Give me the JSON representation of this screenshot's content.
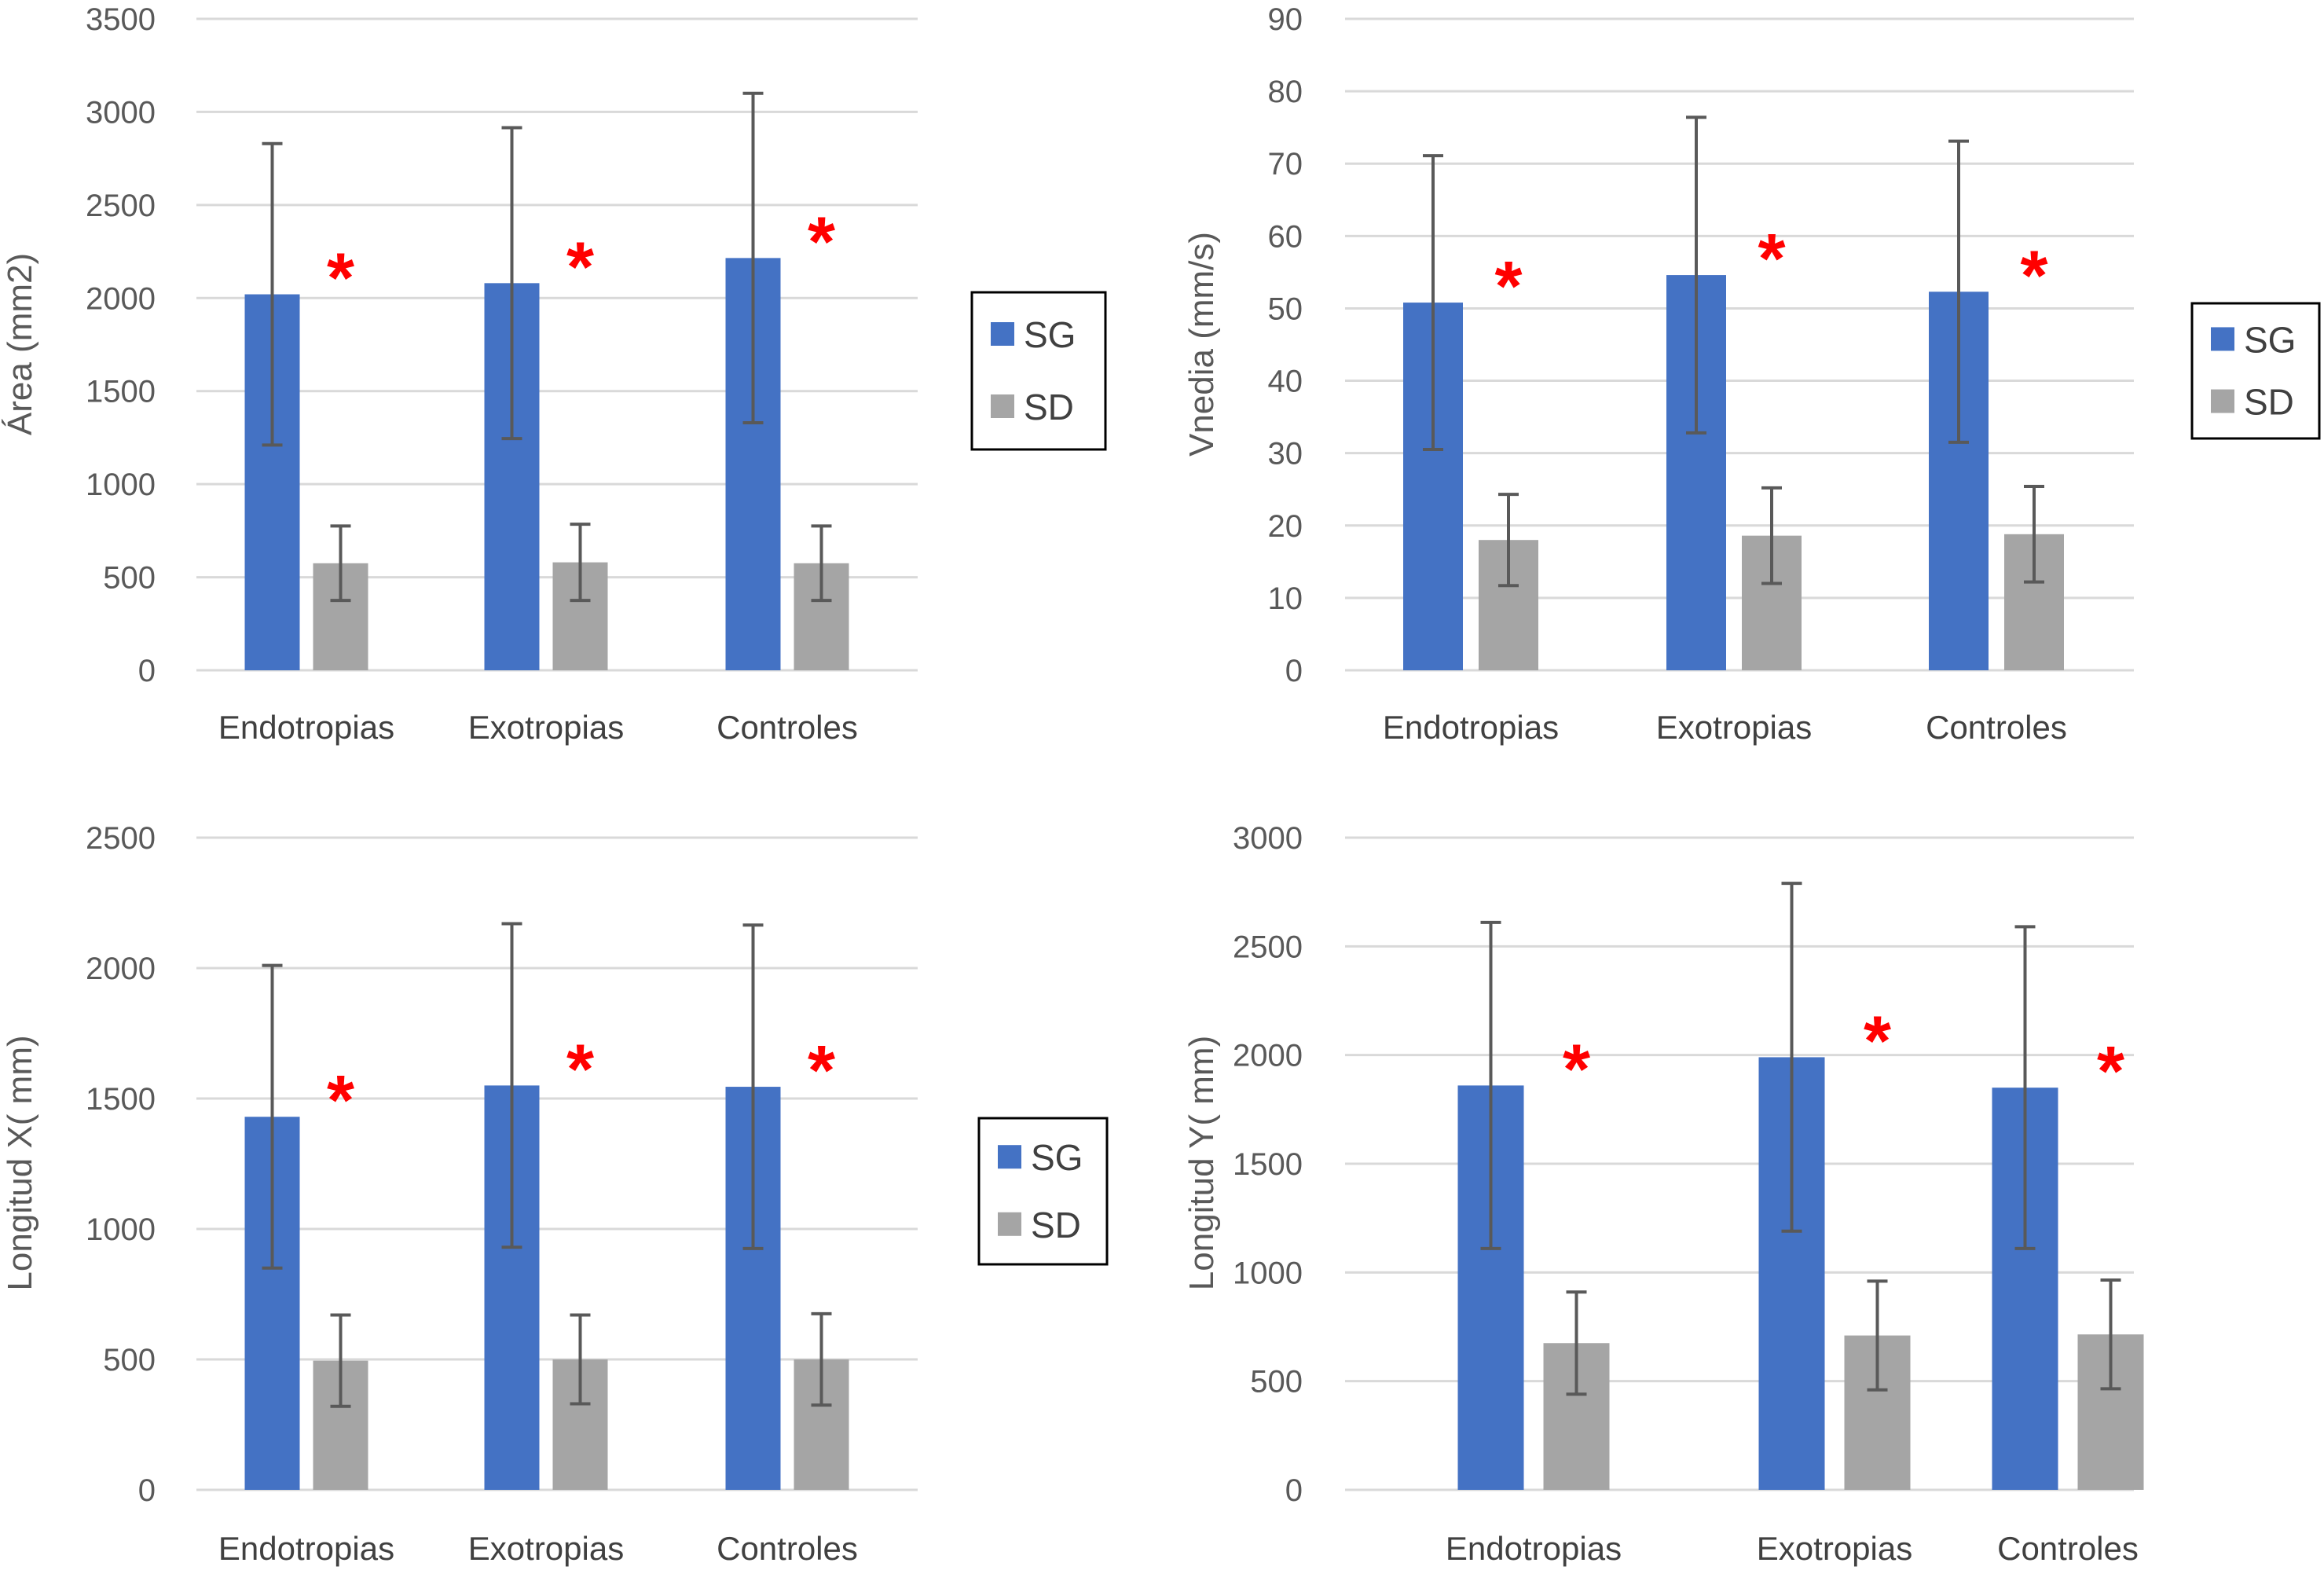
{
  "chart_data": [
    {
      "type": "bar",
      "ylabel": "Área (mm2)",
      "categories": [
        "Endotropias",
        "Exotropias",
        "Controles"
      ],
      "ylim": [
        0,
        3500
      ],
      "yticks": [
        0,
        500,
        1000,
        1500,
        2000,
        2500,
        3000,
        3500
      ],
      "series": [
        {
          "name": "SG",
          "color": "#4472C4",
          "values": [
            2020,
            2080,
            2215
          ],
          "error": [
            810,
            835,
            885
          ]
        },
        {
          "name": "SD",
          "color": "#A5A5A5",
          "values": [
            575,
            580,
            575
          ],
          "error": [
            200,
            205,
            200
          ]
        }
      ],
      "annotations": [
        "*",
        "*",
        "*"
      ],
      "annotation_color": "#FF0000",
      "grid": true,
      "legend": "right"
    },
    {
      "type": "bar",
      "ylabel": "Vnedia (mm/s)",
      "categories": [
        "Endotropias",
        "Exotropias",
        "Controles"
      ],
      "ylim": [
        0,
        90
      ],
      "yticks": [
        0,
        10,
        20,
        30,
        40,
        50,
        60,
        70,
        80,
        90
      ],
      "series": [
        {
          "name": "SG",
          "color": "#4472C4",
          "values": [
            50.8,
            54.6,
            52.3
          ],
          "error": [
            20.3,
            21.8,
            20.8
          ]
        },
        {
          "name": "SD",
          "color": "#A5A5A5",
          "values": [
            18.0,
            18.6,
            18.8
          ],
          "error": [
            6.3,
            6.6,
            6.6
          ]
        }
      ],
      "annotations": [
        "*",
        "*",
        "*"
      ],
      "annotation_color": "#FF0000",
      "grid": true,
      "legend": "right"
    },
    {
      "type": "bar",
      "ylabel": "Longitud X( mm)",
      "categories": [
        "Endotropias",
        "Exotropias",
        "Controles"
      ],
      "ylim": [
        0,
        2500
      ],
      "yticks": [
        0,
        500,
        1000,
        1500,
        2000,
        2500
      ],
      "series": [
        {
          "name": "SG",
          "color": "#4472C4",
          "values": [
            1430,
            1550,
            1545
          ],
          "error": [
            580,
            620,
            620
          ]
        },
        {
          "name": "SD",
          "color": "#A5A5A5",
          "values": [
            495,
            500,
            500
          ],
          "error": [
            175,
            170,
            175
          ]
        }
      ],
      "annotations": [
        "*",
        "*",
        "*"
      ],
      "annotation_color": "#FF0000",
      "grid": true,
      "legend": "right"
    },
    {
      "type": "bar",
      "ylabel": "Longitud Y( mm)",
      "categories": [
        "Endotropias",
        "Exotropias",
        "Controles"
      ],
      "ylim": [
        0,
        3000
      ],
      "yticks": [
        0,
        500,
        1000,
        1500,
        2000,
        2500,
        3000
      ],
      "series": [
        {
          "name": "SG",
          "color": "#4472C4",
          "values": [
            1860,
            1990,
            1850
          ],
          "error": [
            750,
            800,
            740
          ]
        },
        {
          "name": "SD",
          "color": "#A5A5A5",
          "values": [
            675,
            710,
            715
          ],
          "error": [
            235,
            250,
            250
          ]
        }
      ],
      "annotations": [
        "*",
        "*",
        "*"
      ],
      "annotation_color": "#FF0000",
      "grid": true,
      "legend": "none"
    }
  ]
}
